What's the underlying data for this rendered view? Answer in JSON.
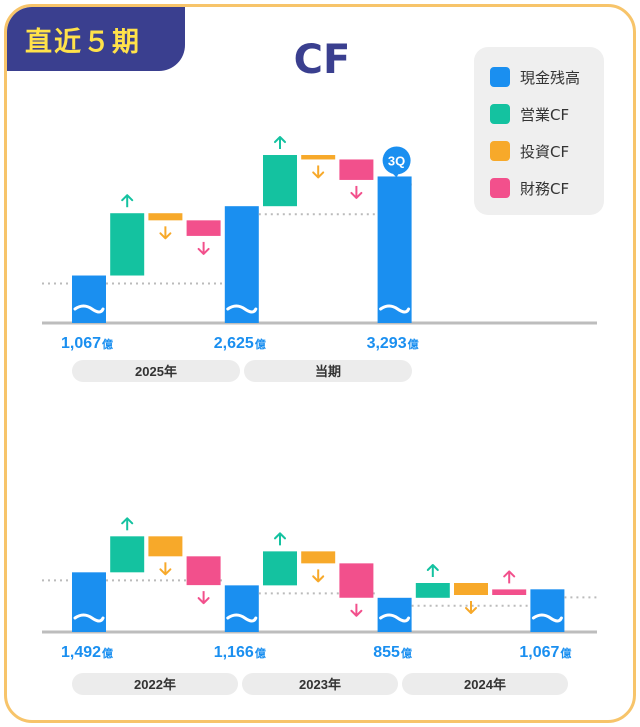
{
  "badge": {
    "label": "直近５期"
  },
  "title": "CF",
  "legend": [
    {
      "label": "現金残高",
      "color": "#1a8ff0"
    },
    {
      "label": "営業CF",
      "color": "#14c2a0"
    },
    {
      "label": "投資CF",
      "color": "#f7a92a"
    },
    {
      "label": "財務CF",
      "color": "#f2508c"
    }
  ],
  "chart_data": [
    {
      "type": "waterfall",
      "unit": "億",
      "steps": [
        {
          "kind": "cash",
          "label": "1,067",
          "value": 1067
        },
        {
          "kind": "op",
          "delta": 1400
        },
        {
          "kind": "inv",
          "delta": -160
        },
        {
          "kind": "fin",
          "delta": -350
        },
        {
          "kind": "cash",
          "label": "2,625",
          "value": 2625
        },
        {
          "kind": "op",
          "delta": 1150
        },
        {
          "kind": "inv",
          "delta": -100
        },
        {
          "kind": "fin",
          "delta": -460
        },
        {
          "kind": "cash",
          "label": "3,293",
          "value": 3293,
          "tag": "3Q"
        }
      ],
      "periods": [
        {
          "label": "2025年"
        },
        {
          "label": "当期"
        }
      ]
    },
    {
      "type": "waterfall",
      "unit": "億",
      "steps": [
        {
          "kind": "cash",
          "label": "1,492",
          "value": 1492
        },
        {
          "kind": "op",
          "delta": 900
        },
        {
          "kind": "inv",
          "delta": -500
        },
        {
          "kind": "fin",
          "delta": -720
        },
        {
          "kind": "cash",
          "label": "1,166",
          "value": 1166
        },
        {
          "kind": "op",
          "delta": 850
        },
        {
          "kind": "inv",
          "delta": -300
        },
        {
          "kind": "fin",
          "delta": -860
        },
        {
          "kind": "cash",
          "label": "855",
          "value": 855
        },
        {
          "kind": "op",
          "delta": 370
        },
        {
          "kind": "inv",
          "delta": -300
        },
        {
          "kind": "fin",
          "delta": 140
        },
        {
          "kind": "cash",
          "label": "1,067",
          "value": 1067
        }
      ],
      "periods": [
        {
          "label": "2022年"
        },
        {
          "label": "2023年"
        },
        {
          "label": "2024年"
        }
      ]
    }
  ]
}
